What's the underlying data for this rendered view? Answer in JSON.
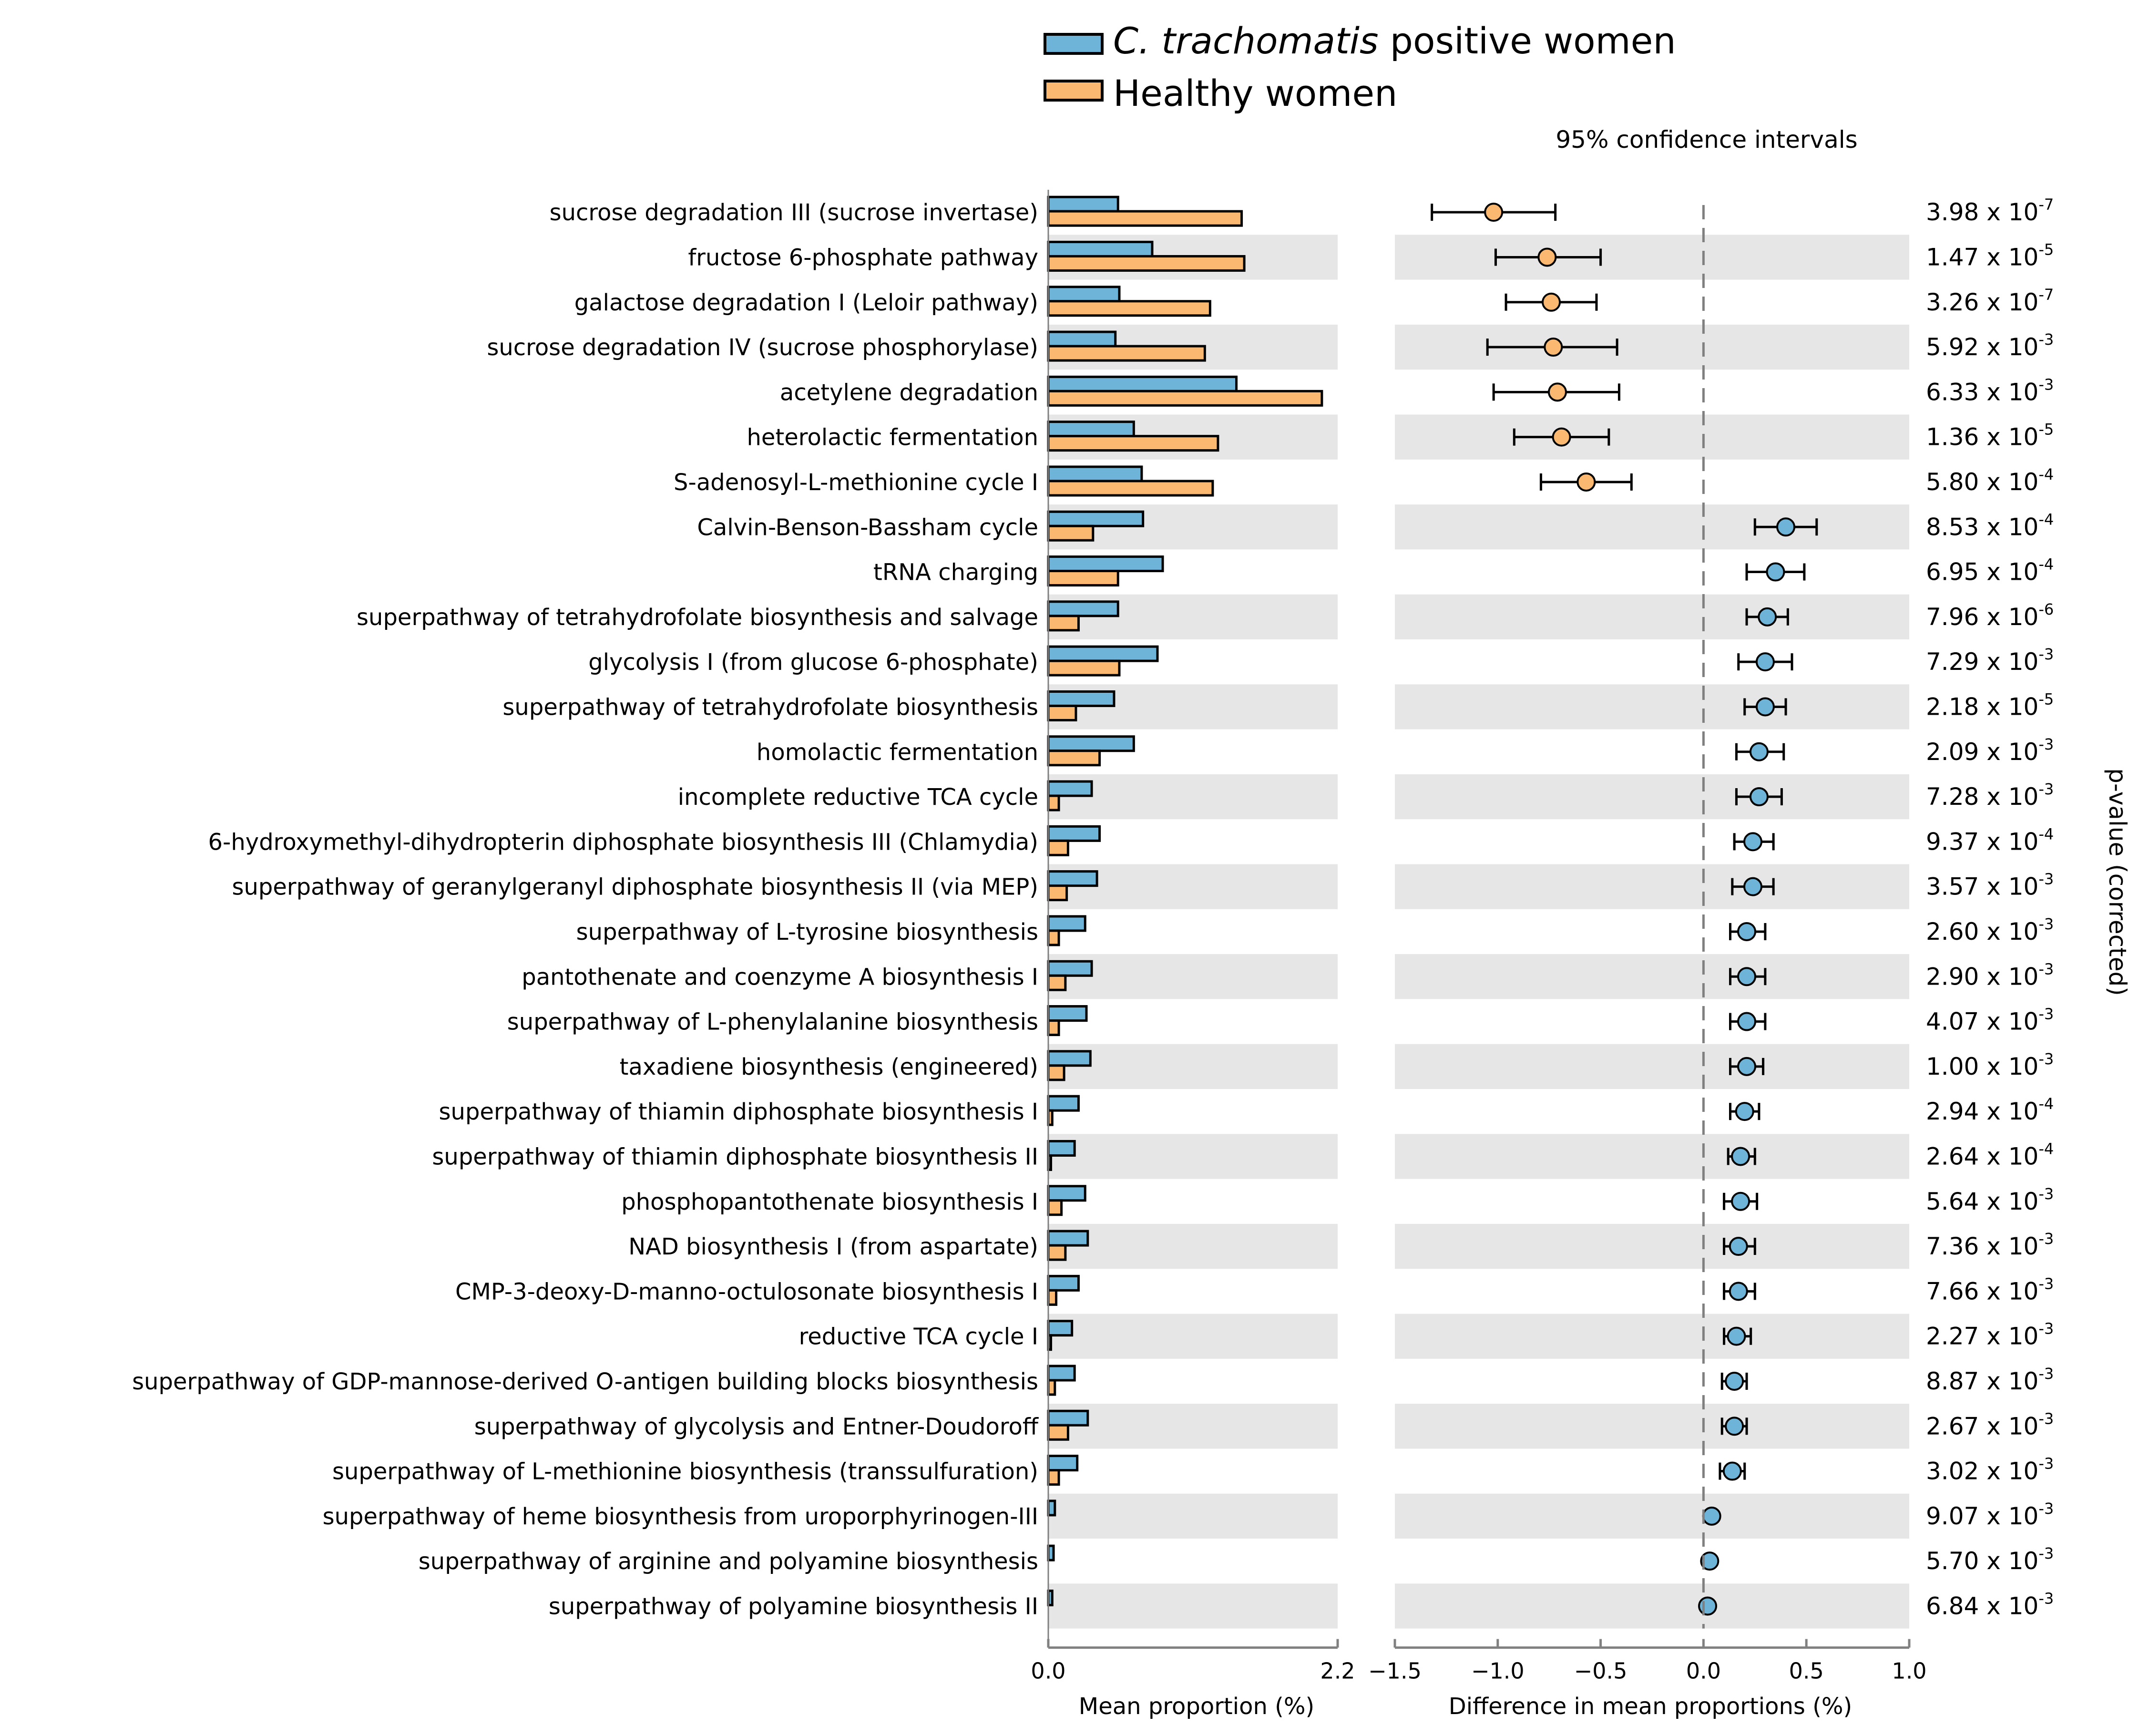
{
  "chart_data": {
    "type": "bar",
    "legend": {
      "placement": "top-center",
      "entries": [
        {
          "italic": "C. trachomatis",
          "rest": " positive women",
          "color": "#6db4d8"
        },
        {
          "italic": "",
          "rest": "Healthy women",
          "color": "#fbb870"
        }
      ]
    },
    "left_panel": {
      "xlabel": "Mean proportion (%)",
      "xlim": [
        0.0,
        2.2
      ],
      "xticks": [
        "0.0",
        "2.2"
      ]
    },
    "right_panel": {
      "title": "95% confidence intervals",
      "xlabel": "Difference in mean proportions (%)",
      "xlim": [
        -1.5,
        1.0
      ],
      "xticks": [
        "−1.5",
        "−1.0",
        "−0.5",
        "0.0",
        "0.5",
        "1.0"
      ],
      "xtick_values": [
        -1.5,
        -1.0,
        -0.5,
        0.0,
        0.5,
        1.0
      ]
    },
    "pvalue_label": "p-value (corrected)",
    "colors": {
      "positive": "#6db4d8",
      "healthy": "#fbb870",
      "stripe": "#e6e6e6"
    },
    "rows": [
      {
        "name": "sucrose degradation III (sucrose invertase)",
        "pos": 0.53,
        "healthy": 1.47,
        "diff": -1.02,
        "lo": -1.32,
        "hi": -0.72,
        "p_base": "3.98 x 10",
        "p_exp": "-7"
      },
      {
        "name": "fructose 6-phosphate pathway",
        "pos": 0.79,
        "healthy": 1.49,
        "diff": -0.76,
        "lo": -1.01,
        "hi": -0.5,
        "p_base": "1.47 x 10",
        "p_exp": "-5"
      },
      {
        "name": "galactose degradation I (Leloir pathway)",
        "pos": 0.54,
        "healthy": 1.23,
        "diff": -0.74,
        "lo": -0.96,
        "hi": -0.52,
        "p_base": "3.26 x 10",
        "p_exp": "-7"
      },
      {
        "name": "sucrose degradation IV (sucrose phosphorylase)",
        "pos": 0.51,
        "healthy": 1.19,
        "diff": -0.73,
        "lo": -1.05,
        "hi": -0.42,
        "p_base": "5.92 x 10",
        "p_exp": "-3"
      },
      {
        "name": "acetylene degradation",
        "pos": 1.43,
        "healthy": 2.08,
        "diff": -0.71,
        "lo": -1.02,
        "hi": -0.41,
        "p_base": "6.33 x 10",
        "p_exp": "-3"
      },
      {
        "name": "heterolactic fermentation",
        "pos": 0.65,
        "healthy": 1.29,
        "diff": -0.69,
        "lo": -0.92,
        "hi": -0.46,
        "p_base": "1.36 x 10",
        "p_exp": "-5"
      },
      {
        "name": "S-adenosyl-L-methionine cycle I",
        "pos": 0.71,
        "healthy": 1.25,
        "diff": -0.57,
        "lo": -0.79,
        "hi": -0.35,
        "p_base": "5.80 x 10",
        "p_exp": "-4"
      },
      {
        "name": "Calvin-Benson-Bassham cycle",
        "pos": 0.72,
        "healthy": 0.34,
        "diff": 0.4,
        "lo": 0.25,
        "hi": 0.55,
        "p_base": "8.53 x 10",
        "p_exp": "-4"
      },
      {
        "name": "tRNA charging",
        "pos": 0.87,
        "healthy": 0.53,
        "diff": 0.35,
        "lo": 0.21,
        "hi": 0.49,
        "p_base": "6.95 x 10",
        "p_exp": "-4"
      },
      {
        "name": "superpathway of tetrahydrofolate biosynthesis and salvage",
        "pos": 0.53,
        "healthy": 0.23,
        "diff": 0.31,
        "lo": 0.21,
        "hi": 0.41,
        "p_base": "7.96 x 10",
        "p_exp": "-6"
      },
      {
        "name": "glycolysis I (from glucose 6-phosphate)",
        "pos": 0.83,
        "healthy": 0.54,
        "diff": 0.3,
        "lo": 0.17,
        "hi": 0.43,
        "p_base": "7.29 x 10",
        "p_exp": "-3"
      },
      {
        "name": "superpathway of tetrahydrofolate biosynthesis",
        "pos": 0.5,
        "healthy": 0.21,
        "diff": 0.3,
        "lo": 0.2,
        "hi": 0.4,
        "p_base": "2.18 x 10",
        "p_exp": "-5"
      },
      {
        "name": "homolactic fermentation",
        "pos": 0.65,
        "healthy": 0.39,
        "diff": 0.27,
        "lo": 0.16,
        "hi": 0.39,
        "p_base": "2.09 x 10",
        "p_exp": "-3"
      },
      {
        "name": "incomplete reductive TCA cycle",
        "pos": 0.33,
        "healthy": 0.08,
        "diff": 0.27,
        "lo": 0.16,
        "hi": 0.38,
        "p_base": "7.28 x 10",
        "p_exp": "-3"
      },
      {
        "name": "6-hydroxymethyl-dihydropterin diphosphate biosynthesis III (Chlamydia)",
        "pos": 0.39,
        "healthy": 0.15,
        "diff": 0.24,
        "lo": 0.15,
        "hi": 0.34,
        "p_base": "9.37 x 10",
        "p_exp": "-4"
      },
      {
        "name": "superpathway of geranylgeranyl diphosphate biosynthesis II (via MEP)",
        "pos": 0.37,
        "healthy": 0.14,
        "diff": 0.24,
        "lo": 0.14,
        "hi": 0.34,
        "p_base": "3.57 x 10",
        "p_exp": "-3"
      },
      {
        "name": "superpathway of L-tyrosine biosynthesis",
        "pos": 0.28,
        "healthy": 0.08,
        "diff": 0.21,
        "lo": 0.13,
        "hi": 0.3,
        "p_base": "2.60 x 10",
        "p_exp": "-3"
      },
      {
        "name": "pantothenate and coenzyme A biosynthesis I",
        "pos": 0.33,
        "healthy": 0.13,
        "diff": 0.21,
        "lo": 0.13,
        "hi": 0.3,
        "p_base": "2.90 x 10",
        "p_exp": "-3"
      },
      {
        "name": "superpathway of L-phenylalanine biosynthesis",
        "pos": 0.29,
        "healthy": 0.08,
        "diff": 0.21,
        "lo": 0.13,
        "hi": 0.3,
        "p_base": "4.07 x 10",
        "p_exp": "-3"
      },
      {
        "name": "taxadiene biosynthesis (engineered)",
        "pos": 0.32,
        "healthy": 0.12,
        "diff": 0.21,
        "lo": 0.13,
        "hi": 0.29,
        "p_base": "1.00 x 10",
        "p_exp": "-3"
      },
      {
        "name": "superpathway of thiamin diphosphate biosynthesis I",
        "pos": 0.23,
        "healthy": 0.03,
        "diff": 0.2,
        "lo": 0.13,
        "hi": 0.27,
        "p_base": "2.94 x 10",
        "p_exp": "-4"
      },
      {
        "name": "superpathway of thiamin diphosphate biosynthesis II",
        "pos": 0.2,
        "healthy": 0.02,
        "diff": 0.18,
        "lo": 0.12,
        "hi": 0.25,
        "p_base": "2.64 x 10",
        "p_exp": "-4"
      },
      {
        "name": "phosphopantothenate biosynthesis I",
        "pos": 0.28,
        "healthy": 0.1,
        "diff": 0.18,
        "lo": 0.1,
        "hi": 0.26,
        "p_base": "5.64 x 10",
        "p_exp": "-3"
      },
      {
        "name": "NAD biosynthesis I (from aspartate)",
        "pos": 0.3,
        "healthy": 0.13,
        "diff": 0.17,
        "lo": 0.1,
        "hi": 0.25,
        "p_base": "7.36 x 10",
        "p_exp": "-3"
      },
      {
        "name": "CMP-3-deoxy-D-manno-octulosonate biosynthesis I",
        "pos": 0.23,
        "healthy": 0.06,
        "diff": 0.17,
        "lo": 0.1,
        "hi": 0.25,
        "p_base": "7.66 x 10",
        "p_exp": "-3"
      },
      {
        "name": "reductive TCA cycle I",
        "pos": 0.18,
        "healthy": 0.02,
        "diff": 0.16,
        "lo": 0.1,
        "hi": 0.23,
        "p_base": "2.27 x 10",
        "p_exp": "-3"
      },
      {
        "name": "superpathway of GDP-mannose-derived O-antigen building blocks biosynthesis",
        "pos": 0.2,
        "healthy": 0.05,
        "diff": 0.15,
        "lo": 0.09,
        "hi": 0.21,
        "p_base": "8.87 x 10",
        "p_exp": "-3"
      },
      {
        "name": "superpathway of glycolysis and Entner-Doudoroff",
        "pos": 0.3,
        "healthy": 0.15,
        "diff": 0.15,
        "lo": 0.09,
        "hi": 0.21,
        "p_base": "2.67 x 10",
        "p_exp": "-3"
      },
      {
        "name": "superpathway of L-methionine biosynthesis (transsulfuration)",
        "pos": 0.22,
        "healthy": 0.08,
        "diff": 0.14,
        "lo": 0.08,
        "hi": 0.2,
        "p_base": "3.02 x 10",
        "p_exp": "-3"
      },
      {
        "name": "superpathway of heme biosynthesis from uroporphyrinogen-III",
        "pos": 0.05,
        "healthy": 0.0,
        "diff": 0.04,
        "lo": 0.04,
        "hi": 0.04,
        "p_base": "9.07 x 10",
        "p_exp": "-3"
      },
      {
        "name": "superpathway of arginine and polyamine biosynthesis",
        "pos": 0.04,
        "healthy": 0.0,
        "diff": 0.03,
        "lo": 0.03,
        "hi": 0.03,
        "p_base": "5.70 x 10",
        "p_exp": "-3"
      },
      {
        "name": "superpathway of polyamine biosynthesis II",
        "pos": 0.03,
        "healthy": 0.0,
        "diff": 0.02,
        "lo": 0.02,
        "hi": 0.02,
        "p_base": "6.84 x 10",
        "p_exp": "-3"
      }
    ]
  }
}
